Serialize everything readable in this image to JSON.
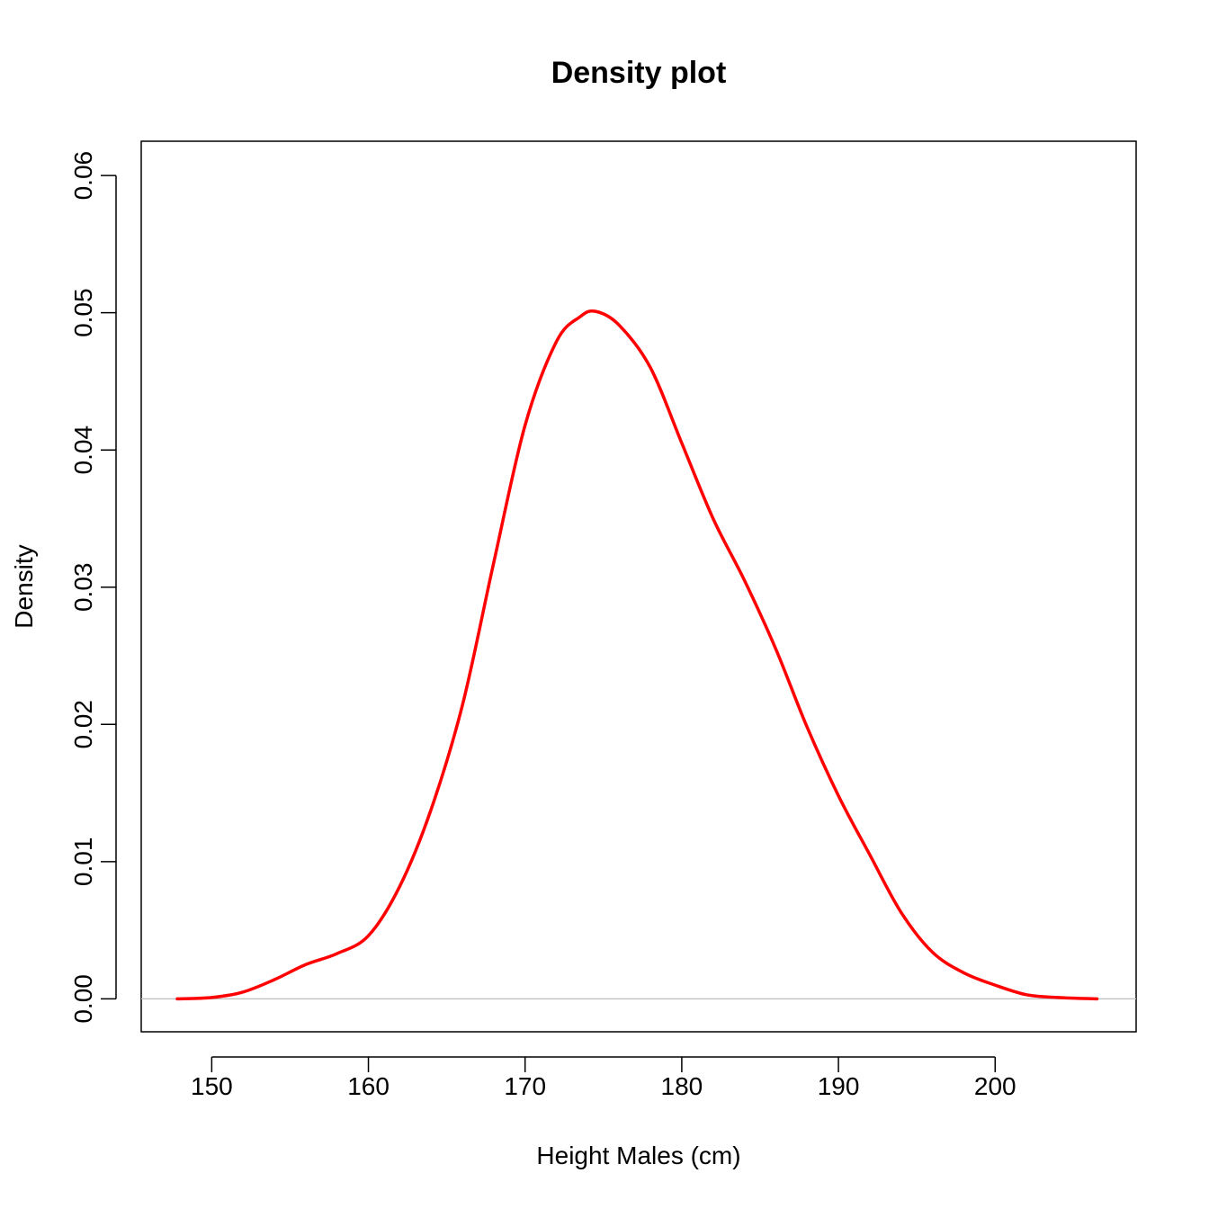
{
  "chart_data": {
    "type": "line",
    "title": "Density plot",
    "xlabel": "Height Males (cm)",
    "ylabel": "Density",
    "xlim": [
      145.5,
      209
    ],
    "ylim": [
      -0.0024,
      0.0625
    ],
    "xticks": [
      150,
      160,
      170,
      180,
      190,
      200
    ],
    "yticks": [
      0.0,
      0.01,
      0.02,
      0.03,
      0.04,
      0.05,
      0.06
    ],
    "xtick_labels": [
      "150",
      "160",
      "170",
      "180",
      "190",
      "200"
    ],
    "ytick_labels": [
      "0.00",
      "0.01",
      "0.02",
      "0.03",
      "0.04",
      "0.05",
      "0.06"
    ],
    "baseline": 0,
    "grid": false,
    "legend": "none",
    "colors": {
      "line": "#ff0000",
      "baseline": "#bebebe",
      "axis": "#000000"
    },
    "series": [
      {
        "x": [
          147.8,
          150,
          152,
          154,
          156,
          158,
          160,
          162,
          164,
          166,
          168,
          170,
          172,
          173.5,
          174.5,
          176,
          178,
          180,
          182,
          184,
          186,
          188,
          190,
          192,
          194,
          196,
          198,
          200,
          202,
          204,
          206.5
        ],
        "y": [
          0.0,
          0.0001,
          0.0005,
          0.0014,
          0.0025,
          0.0033,
          0.0046,
          0.0082,
          0.0138,
          0.0214,
          0.0318,
          0.0418,
          0.0479,
          0.0497,
          0.0501,
          0.0491,
          0.046,
          0.0405,
          0.035,
          0.0305,
          0.0255,
          0.0198,
          0.0148,
          0.0105,
          0.0063,
          0.0034,
          0.0019,
          0.001,
          0.0003,
          0.0001,
          0.0
        ]
      }
    ]
  }
}
